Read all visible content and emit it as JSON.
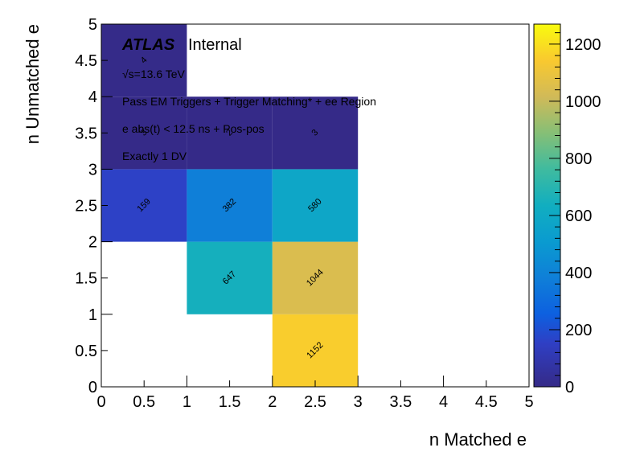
{
  "chart_data": {
    "type": "heatmap",
    "xlabel": "n Matched e",
    "ylabel": "n Unmatched e",
    "xlim": [
      0,
      5
    ],
    "ylim": [
      0,
      5
    ],
    "x_ticks": [
      "0",
      "0.5",
      "1",
      "1.5",
      "2",
      "2.5",
      "3",
      "3.5",
      "4",
      "4.5",
      "5"
    ],
    "y_ticks": [
      "0",
      "0.5",
      "1",
      "1.5",
      "2",
      "2.5",
      "3",
      "3.5",
      "4",
      "4.5",
      "5"
    ],
    "colorbar": {
      "range": [
        0,
        1270
      ],
      "ticks": [
        "0",
        "200",
        "400",
        "600",
        "800",
        "1000",
        "1200"
      ],
      "palette": "parula"
    },
    "cells": [
      {
        "x": [
          2,
          3
        ],
        "y": [
          0,
          1
        ],
        "value": 1152,
        "label": "1152"
      },
      {
        "x": [
          1,
          2
        ],
        "y": [
          1,
          2
        ],
        "value": 647,
        "label": "647"
      },
      {
        "x": [
          2,
          3
        ],
        "y": [
          1,
          2
        ],
        "value": 1044,
        "label": "1044"
      },
      {
        "x": [
          0,
          1
        ],
        "y": [
          2,
          3
        ],
        "value": 159,
        "label": "159"
      },
      {
        "x": [
          1,
          2
        ],
        "y": [
          2,
          3
        ],
        "value": 382,
        "label": "382"
      },
      {
        "x": [
          2,
          3
        ],
        "y": [
          2,
          3
        ],
        "value": 580,
        "label": "580"
      },
      {
        "x": [
          0,
          1
        ],
        "y": [
          3,
          4
        ],
        "value": 3,
        "label": "3"
      },
      {
        "x": [
          1,
          2
        ],
        "y": [
          3,
          4
        ],
        "value": 2,
        "label": "2"
      },
      {
        "x": [
          2,
          3
        ],
        "y": [
          3,
          4
        ],
        "value": 3,
        "label": "3"
      },
      {
        "x": [
          0,
          1
        ],
        "y": [
          4,
          5
        ],
        "value": 4,
        "label": "4"
      }
    ],
    "annotations": {
      "atlas": "ATLAS",
      "internal": "Internal",
      "energy": "√s=13.6 TeV",
      "selection": "Pass EM Triggers + Trigger Matching* + ee Region",
      "timing": "e abs(t) < 12.5 ns + Pos-pos",
      "dv": "Exactly 1 DV"
    }
  }
}
